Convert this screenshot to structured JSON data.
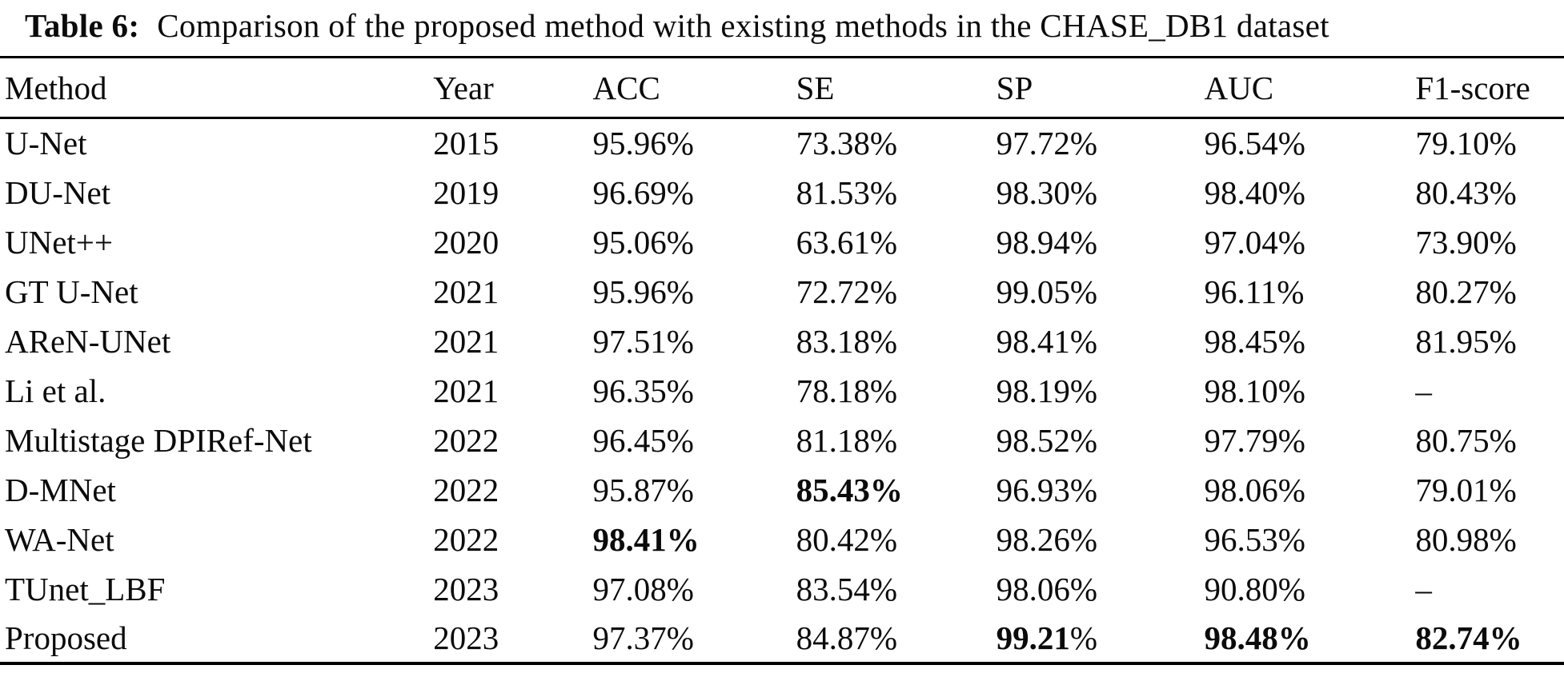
{
  "caption": {
    "label": "Table 6:",
    "text": "Comparison of the proposed method with existing methods in the CHASE_DB1 dataset"
  },
  "colors": {
    "background": "#ffffff",
    "text": "#0b0b0b",
    "rule": "#000000"
  },
  "table": {
    "columns": [
      "Method",
      "Year",
      "ACC",
      "SE",
      "SP",
      "AUC",
      "F1-score"
    ],
    "missing_value_symbol": "–",
    "rows": [
      {
        "cells": [
          "U-Net",
          "2015",
          "95.96%",
          "73.38%",
          "97.72%",
          "96.54%",
          "79.10%"
        ]
      },
      {
        "cells": [
          "DU-Net",
          "2019",
          "96.69%",
          "81.53%",
          "98.30%",
          "98.40%",
          "80.43%"
        ]
      },
      {
        "cells": [
          "UNet++",
          "2020",
          "95.06%",
          "63.61%",
          "98.94%",
          "97.04%",
          "73.90%"
        ]
      },
      {
        "cells": [
          "GT U-Net",
          "2021",
          "95.96%",
          "72.72%",
          "99.05%",
          "96.11%",
          "80.27%"
        ]
      },
      {
        "cells": [
          "AReN-UNet",
          "2021",
          "97.51%",
          "83.18%",
          "98.41%",
          "98.45%",
          "81.95%"
        ]
      },
      {
        "cells": [
          "Li et al.",
          "2021",
          "96.35%",
          "78.18%",
          "98.19%",
          "98.10%",
          "–"
        ]
      },
      {
        "cells": [
          "Multistage DPIRef-Net",
          "2022",
          "96.45%",
          "81.18%",
          "98.52%",
          "97.79%",
          "80.75%"
        ]
      },
      {
        "cells": [
          "D-MNet",
          "2022",
          "95.87%",
          {
            "text": "85.43%",
            "bold": true
          },
          "96.93%",
          "98.06%",
          "79.01%"
        ]
      },
      {
        "cells": [
          "WA-Net",
          "2022",
          {
            "text": "98.41%",
            "bold": true
          },
          "80.42%",
          "98.26%",
          "96.53%",
          "80.98%"
        ]
      },
      {
        "cells": [
          "TUnet_LBF",
          "2023",
          "97.08%",
          "83.54%",
          "98.06%",
          "90.80%",
          "–"
        ]
      },
      {
        "cells": [
          "Proposed",
          "2023",
          "97.37%",
          "84.87%",
          {
            "segments": [
              {
                "text": "99.21",
                "bold": true
              },
              {
                "text": "%",
                "bold": false
              }
            ]
          },
          {
            "text": "98.48%",
            "bold": true
          },
          {
            "text": "82.74%",
            "bold": true
          }
        ]
      }
    ]
  }
}
